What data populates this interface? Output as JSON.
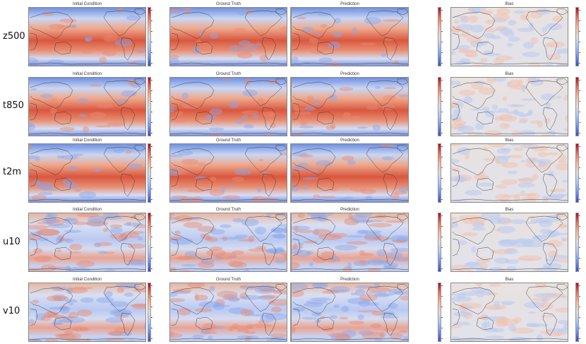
{
  "columns": [
    "Initial Condition",
    "Ground Truth",
    "Prediction",
    "Bias"
  ],
  "rows": [
    {
      "label": "z500",
      "field": "warm-band"
    },
    {
      "label": "t850",
      "field": "warm-band"
    },
    {
      "label": "t2m",
      "field": "warm-band"
    },
    {
      "label": "u10",
      "field": "wind"
    },
    {
      "label": "v10",
      "field": "wind"
    }
  ],
  "colormap": {
    "name": "coolwarm",
    "stops": [
      "#3b4cc0",
      "#6f91f2",
      "#a9c6fd",
      "#dddddd",
      "#f6b89c",
      "#e7745b",
      "#b40426"
    ]
  }
}
